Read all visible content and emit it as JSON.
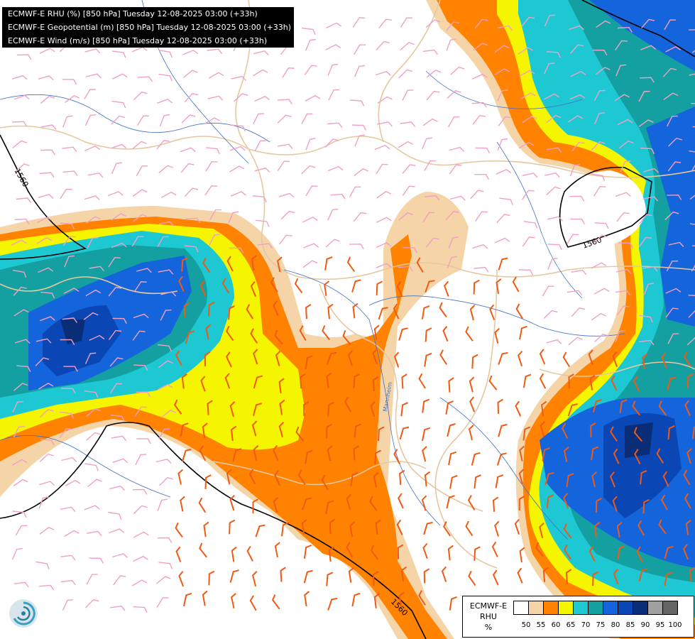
{
  "title_lines": [
    "ECMWF-E RHU (%) [850 hPa] Tuesday 12-08-2025 03:00 (+33h)",
    "ECMWF-E Geopotential (m) [850 hPa] Tuesday 12-08-2025 03:00 (+33h)",
    "ECMWF-E Wind (m/s) [850 hPa] Tuesday 12-08-2025 03:00 (+33h)"
  ],
  "legend": {
    "model": "ECMWF-E",
    "variable": "RHU",
    "unit": "%",
    "bins": [
      {
        "label": "50",
        "color": "#ffffff"
      },
      {
        "label": "55",
        "color": "#f5d5a8"
      },
      {
        "label": "60",
        "color": "#ff8200"
      },
      {
        "label": "65",
        "color": "#f5f500"
      },
      {
        "label": "70",
        "color": "#1ec8d2"
      },
      {
        "label": "75",
        "color": "#14a0a0"
      },
      {
        "label": "80",
        "color": "#1464dc"
      },
      {
        "label": "85",
        "color": "#0a46b4"
      },
      {
        "label": "90",
        "color": "#0a2d78"
      },
      {
        "label": "95",
        "color": "#a0a0a0"
      },
      {
        "label": "100",
        "color": "#646464"
      }
    ]
  },
  "contour_labels": [
    "1560",
    "1560",
    "1560"
  ],
  "place_labels": [
    "Mannheim"
  ],
  "colors": {
    "country_border": "#e6c8a0",
    "river": "#4070c8",
    "geopotential_contour": "#000000",
    "wind_barb_dry": "#f0a0c8",
    "wind_barb_moist": "#f05a14"
  },
  "logo_icon": "ecmwf-swirl-logo-icon"
}
